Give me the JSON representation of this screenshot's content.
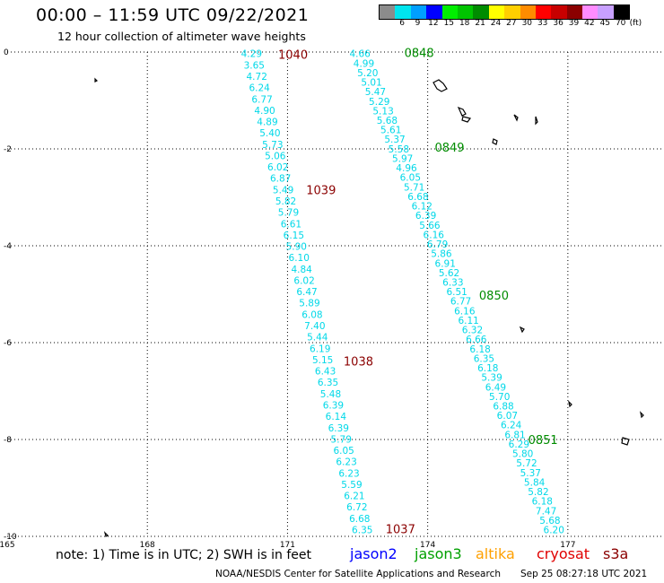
{
  "header": {
    "title": "00:00 – 11:59 UTC 09/22/2021",
    "subtitle": "12 hour collection of altimeter wave heights"
  },
  "colorbar": {
    "unit": "(ft)",
    "bins": [
      {
        "label": "3",
        "color": "#8c8c8c"
      },
      {
        "label": "6",
        "color": "#00e5ee"
      },
      {
        "label": "9",
        "color": "#009fff"
      },
      {
        "label": "12",
        "color": "#0000ff"
      },
      {
        "label": "15",
        "color": "#00ee00"
      },
      {
        "label": "18",
        "color": "#00c400"
      },
      {
        "label": "21",
        "color": "#008c00"
      },
      {
        "label": "24",
        "color": "#ffff00"
      },
      {
        "label": "27",
        "color": "#ffcf00"
      },
      {
        "label": "30",
        "color": "#ff8c00"
      },
      {
        "label": "33",
        "color": "#ff0000"
      },
      {
        "label": "36",
        "color": "#c80000"
      },
      {
        "label": "39",
        "color": "#8b0000"
      },
      {
        "label": "42",
        "color": "#ff8cff"
      },
      {
        "label": "45",
        "color": "#c8a0ff"
      },
      {
        "label": "70",
        "color": "#000000"
      }
    ]
  },
  "map": {
    "lat_ticks": [
      "0",
      "-2",
      "-4",
      "-6",
      "-8",
      "-10"
    ],
    "lon_ticks": [
      "165",
      "168",
      "171",
      "174",
      "177"
    ],
    "lat_range": [
      -10,
      0
    ],
    "lon_range": [
      165,
      179
    ]
  },
  "tracks": [
    {
      "color": "#00d8e8",
      "start": {
        "lon": 170.23,
        "lat": -0.05
      },
      "end": {
        "lon": 172.6,
        "lat": -9.88
      },
      "values": [
        "4.29",
        "3.65",
        "4.72",
        "6.24",
        "6.77",
        "4.90",
        "4.89",
        "5.40",
        "5.73",
        "5.06",
        "6.02",
        "6.87",
        "5.49",
        "5.82",
        "5.79",
        "6.61",
        "6.15",
        "5.90",
        "6.10",
        "4.84",
        "6.02",
        "6.47",
        "5.89",
        "6.08",
        "7.40",
        "5.44",
        "6.19",
        "5.15",
        "6.43",
        "6.35",
        "5.48",
        "6.39",
        "6.14",
        "6.39",
        "5.79",
        "6.05",
        "6.23",
        "6.23",
        "5.59",
        "6.21",
        "6.72",
        "6.68",
        "6.35"
      ]
    },
    {
      "color": "#00d8e8",
      "start": {
        "lon": 172.55,
        "lat": -0.05
      },
      "end": {
        "lon": 176.7,
        "lat": -9.88
      },
      "values": [
        "4.66",
        "4.99",
        "5.20",
        "5.01",
        "5.47",
        "5.29",
        "5.13",
        "5.68",
        "5.61",
        "5.37",
        "5.58",
        "5.97",
        "4.96",
        "6.05",
        "5.71",
        "6.68",
        "6.12",
        "6.39",
        "5.66",
        "6.16",
        "6.79",
        "5.86",
        "6.91",
        "5.62",
        "6.33",
        "6.51",
        "6.77",
        "6.16",
        "6.11",
        "6.32",
        "6.66",
        "6.18",
        "6.35",
        "6.18",
        "5.39",
        "6.49",
        "5.70",
        "6.88",
        "6.07",
        "6.24",
        "6.81",
        "6.29",
        "5.80",
        "5.72",
        "5.37",
        "5.84",
        "5.82",
        "6.18",
        "7.47",
        "5.68",
        "6.20"
      ]
    }
  ],
  "time_labels": [
    {
      "text": "1040",
      "color": "#8b0000",
      "lon": 170.8,
      "lat": -0.05
    },
    {
      "text": "1039",
      "color": "#8b0000",
      "lon": 171.4,
      "lat": -2.84
    },
    {
      "text": "1038",
      "color": "#8b0000",
      "lon": 172.2,
      "lat": -6.38
    },
    {
      "text": "1037",
      "color": "#8b0000",
      "lon": 173.1,
      "lat": -9.84
    },
    {
      "text": "0848",
      "color": "#008c00",
      "lon": 173.5,
      "lat": -0.01
    },
    {
      "text": "0849",
      "color": "#008c00",
      "lon": 174.15,
      "lat": -1.96
    },
    {
      "text": "0850",
      "color": "#008c00",
      "lon": 175.1,
      "lat": -5.02
    },
    {
      "text": "0851",
      "color": "#008c00",
      "lon": 176.15,
      "lat": -8.0
    }
  ],
  "footer": {
    "note": "note:  1) Time is in UTC;  2) SWH is in feet",
    "missions": [
      {
        "name": "jason2",
        "color": "#0000ff"
      },
      {
        "name": "jason3",
        "color": "#00a000"
      },
      {
        "name": "altika",
        "color": "#ffa000"
      },
      {
        "name": "cryosat",
        "color": "#e00000"
      },
      {
        "name": "s3a",
        "color": "#8b0000"
      }
    ],
    "credit": "NOAA/NESDIS Center for Satellite Applications and Research",
    "timestamp": "Sep 25 08:27:18 UTC 2021"
  }
}
